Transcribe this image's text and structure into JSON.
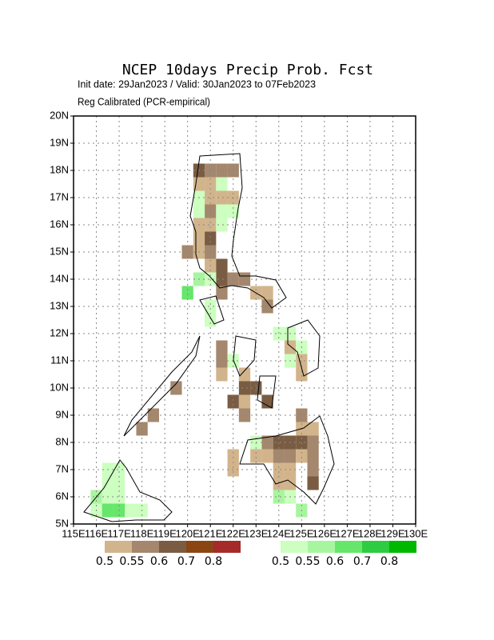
{
  "chart_data": {
    "type": "grid-map",
    "title": "NCEP 10days Precip Prob. Fcst",
    "subtitle": "Init date: 29Jan2023 / Valid: 30Jan2023 to 07Feb2023",
    "note": "Reg Calibrated (PCR-empirical)",
    "xlim": [
      115,
      130
    ],
    "ylim": [
      5,
      20
    ],
    "xticks": [
      {
        "value": 115,
        "label": "115E"
      },
      {
        "value": 116,
        "label": "116E"
      },
      {
        "value": 117,
        "label": "117E"
      },
      {
        "value": 118,
        "label": "118E"
      },
      {
        "value": 119,
        "label": "119E"
      },
      {
        "value": 120,
        "label": "120E"
      },
      {
        "value": 121,
        "label": "121E"
      },
      {
        "value": 122,
        "label": "122E"
      },
      {
        "value": 123,
        "label": "123E"
      },
      {
        "value": 124,
        "label": "124E"
      },
      {
        "value": 125,
        "label": "125E"
      },
      {
        "value": 126,
        "label": "126E"
      },
      {
        "value": 127,
        "label": "127E"
      },
      {
        "value": 128,
        "label": "128E"
      },
      {
        "value": 129,
        "label": "129E"
      },
      {
        "value": 130,
        "label": "130E"
      }
    ],
    "yticks": [
      {
        "value": 5,
        "label": "5N"
      },
      {
        "value": 6,
        "label": "6N"
      },
      {
        "value": 7,
        "label": "7N"
      },
      {
        "value": 8,
        "label": "8N"
      },
      {
        "value": 9,
        "label": "9N"
      },
      {
        "value": 10,
        "label": "10N"
      },
      {
        "value": 11,
        "label": "11N"
      },
      {
        "value": 12,
        "label": "12N"
      },
      {
        "value": 13,
        "label": "13N"
      },
      {
        "value": 14,
        "label": "14N"
      },
      {
        "value": 15,
        "label": "15N"
      },
      {
        "value": 16,
        "label": "16N"
      },
      {
        "value": 17,
        "label": "17N"
      },
      {
        "value": 18,
        "label": "18N"
      },
      {
        "value": 19,
        "label": "19N"
      },
      {
        "value": 20,
        "label": "20N"
      }
    ],
    "grid": true,
    "dry_scale": {
      "levels": [
        0.5,
        0.55,
        0.6,
        0.7,
        0.8
      ],
      "colors": [
        "#d2b48c",
        "#a4876d",
        "#7a5c42",
        "#8b4513",
        "#a52a2a"
      ]
    },
    "wet_scale": {
      "levels": [
        0.5,
        0.55,
        0.6,
        0.7,
        0.8
      ],
      "colors": [
        "#ccffc0",
        "#a8f5a0",
        "#66e66a",
        "#2ecc40",
        "#00b800"
      ]
    },
    "dry_cells": [
      [
        120.25,
        17.75,
        2
      ],
      [
        120.75,
        17.75,
        1
      ],
      [
        121.25,
        17.75,
        1
      ],
      [
        121.75,
        17.75,
        1
      ],
      [
        120.25,
        17.25,
        0
      ],
      [
        120.75,
        17.25,
        0
      ],
      [
        120.75,
        16.75,
        0
      ],
      [
        121.25,
        16.75,
        0
      ],
      [
        121.75,
        16.75,
        0
      ],
      [
        120.75,
        16.25,
        1
      ],
      [
        120.25,
        15.75,
        0
      ],
      [
        120.75,
        15.75,
        0
      ],
      [
        120.25,
        15.25,
        0
      ],
      [
        120.75,
        15.25,
        2
      ],
      [
        119.75,
        14.75,
        1
      ],
      [
        120.25,
        14.75,
        0
      ],
      [
        120.75,
        14.75,
        1
      ],
      [
        120.75,
        14.25,
        0
      ],
      [
        121.25,
        14.25,
        2
      ],
      [
        121.25,
        13.75,
        2
      ],
      [
        121.75,
        13.75,
        1
      ],
      [
        122.25,
        13.75,
        1
      ],
      [
        121.25,
        13.25,
        1
      ],
      [
        122.75,
        13.25,
        0
      ],
      [
        123.25,
        13.25,
        0
      ],
      [
        123.25,
        12.75,
        1
      ],
      [
        121.25,
        11.25,
        1
      ],
      [
        124.25,
        11.25,
        0
      ],
      [
        121.25,
        10.75,
        1
      ],
      [
        124.75,
        10.75,
        0
      ],
      [
        121.25,
        10.25,
        0
      ],
      [
        122.25,
        10.25,
        0
      ],
      [
        124.75,
        10.25,
        0
      ],
      [
        119.25,
        9.75,
        1
      ],
      [
        122.25,
        9.75,
        2
      ],
      [
        122.75,
        9.75,
        2
      ],
      [
        121.75,
        9.25,
        2
      ],
      [
        122.25,
        9.25,
        0
      ],
      [
        123.25,
        9.25,
        2
      ],
      [
        118.25,
        8.75,
        1
      ],
      [
        122.25,
        8.75,
        1
      ],
      [
        124.75,
        8.75,
        1
      ],
      [
        117.75,
        8.25,
        1
      ],
      [
        124.75,
        8.25,
        0
      ],
      [
        125.25,
        8.25,
        0
      ],
      [
        123.25,
        7.75,
        1
      ],
      [
        123.75,
        7.75,
        2
      ],
      [
        124.25,
        7.75,
        2
      ],
      [
        124.75,
        7.75,
        2
      ],
      [
        125.25,
        7.75,
        1
      ],
      [
        121.75,
        7.25,
        0
      ],
      [
        122.75,
        7.25,
        0
      ],
      [
        123.25,
        7.25,
        0
      ],
      [
        123.75,
        7.25,
        1
      ],
      [
        124.25,
        7.25,
        1
      ],
      [
        124.75,
        7.25,
        0
      ],
      [
        125.25,
        7.25,
        1
      ],
      [
        121.75,
        6.75,
        0
      ],
      [
        123.75,
        6.75,
        0
      ],
      [
        124.25,
        6.75,
        0
      ],
      [
        125.25,
        6.75,
        1
      ],
      [
        123.75,
        6.25,
        0
      ],
      [
        124.25,
        6.25,
        0
      ],
      [
        125.25,
        6.25,
        2
      ]
    ],
    "wet_cells": [
      [
        121.25,
        17.25,
        0
      ],
      [
        120.25,
        16.75,
        0
      ],
      [
        120.25,
        16.25,
        0
      ],
      [
        121.25,
        16.25,
        0
      ],
      [
        121.75,
        16.25,
        0
      ],
      [
        121.25,
        15.75,
        0
      ],
      [
        120.25,
        13.75,
        1
      ],
      [
        120.75,
        13.75,
        0
      ],
      [
        119.75,
        13.25,
        2
      ],
      [
        120.75,
        12.75,
        0
      ],
      [
        120.75,
        12.25,
        0
      ],
      [
        123.75,
        11.75,
        0
      ],
      [
        124.25,
        11.75,
        0
      ],
      [
        124.75,
        11.25,
        0
      ],
      [
        121.75,
        10.75,
        0
      ],
      [
        124.25,
        10.75,
        0
      ],
      [
        122.75,
        7.75,
        0
      ],
      [
        123.75,
        5.75,
        1
      ],
      [
        124.25,
        5.75,
        0
      ],
      [
        124.75,
        5.25,
        1
      ],
      [
        116.25,
        6.75,
        0
      ],
      [
        116.75,
        6.75,
        0
      ],
      [
        116.25,
        6.25,
        0
      ],
      [
        116.75,
        6.25,
        0
      ],
      [
        115.75,
        5.75,
        1
      ],
      [
        116.25,
        5.75,
        0
      ],
      [
        116.75,
        5.75,
        0
      ],
      [
        115.75,
        5.25,
        0
      ],
      [
        116.25,
        5.25,
        2
      ],
      [
        116.75,
        5.25,
        2
      ],
      [
        117.25,
        5.25,
        0
      ],
      [
        117.75,
        5.25,
        0
      ]
    ]
  }
}
